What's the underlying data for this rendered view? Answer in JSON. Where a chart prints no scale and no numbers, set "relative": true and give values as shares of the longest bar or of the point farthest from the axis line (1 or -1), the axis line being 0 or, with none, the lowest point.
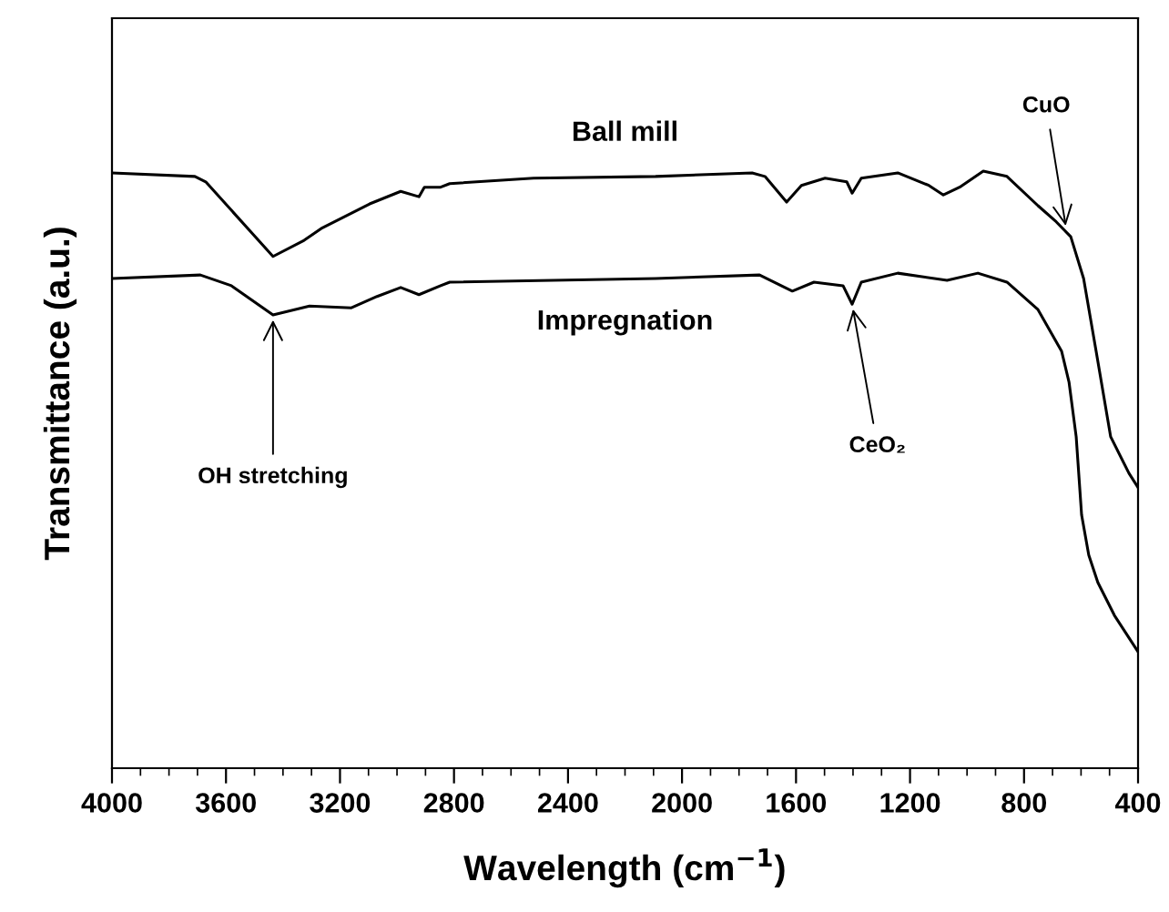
{
  "chart_data": {
    "type": "line",
    "relative": true,
    "xlabel": "Wavelength (cm$^{−1}$)",
    "ylabel": "Transmittance (a.u.)",
    "xlim": [
      4000,
      400
    ],
    "xticks": [
      4000,
      3600,
      3200,
      2800,
      2400,
      2000,
      1600,
      1200,
      800,
      400
    ],
    "grid": false,
    "legend": false,
    "marker": "none",
    "line_style": "solid",
    "series": [
      {
        "name": "Ball mill",
        "color": "#000000",
        "x": [
          4000,
          3709,
          3671,
          3435,
          3326,
          3262,
          3096,
          2987,
          2923,
          2904,
          2847,
          2815,
          2521,
          2093,
          1754,
          1709,
          1633,
          1581,
          1498,
          1422,
          1403,
          1371,
          1243,
          1134,
          1083,
          1026,
          943,
          860,
          751,
          687,
          636,
          591,
          547,
          496,
          432,
          400
        ],
        "values": [
          0.997,
          0.991,
          0.982,
          0.857,
          0.884,
          0.905,
          0.945,
          0.966,
          0.957,
          0.973,
          0.973,
          0.979,
          0.988,
          0.991,
          0.997,
          0.991,
          0.948,
          0.976,
          0.988,
          0.982,
          0.963,
          0.988,
          0.997,
          0.976,
          0.96,
          0.973,
          1.0,
          0.991,
          0.942,
          0.915,
          0.89,
          0.82,
          0.698,
          0.555,
          0.494,
          0.47
        ]
      },
      {
        "name": "Impregnation",
        "color": "#000000",
        "x": [
          4000,
          3690,
          3581,
          3435,
          3307,
          3160,
          3070,
          2987,
          2923,
          2847,
          2815,
          2093,
          1728,
          1613,
          1537,
          1435,
          1403,
          1371,
          1243,
          1070,
          962,
          860,
          751,
          668,
          642,
          617,
          598,
          573,
          541,
          483,
          400
        ],
        "values": [
          0.82,
          0.826,
          0.808,
          0.759,
          0.774,
          0.771,
          0.79,
          0.805,
          0.793,
          0.808,
          0.814,
          0.82,
          0.826,
          0.799,
          0.814,
          0.808,
          0.777,
          0.814,
          0.829,
          0.817,
          0.829,
          0.814,
          0.768,
          0.698,
          0.646,
          0.555,
          0.424,
          0.357,
          0.311,
          0.256,
          0.195
        ]
      }
    ],
    "annotations": [
      {
        "text": "OH stretching",
        "x": 3435,
        "y": 0.759
      },
      {
        "text": "CeO₂",
        "x": 1403,
        "y": 0.777
      },
      {
        "text": "CuO",
        "x": 651,
        "y": 0.9
      }
    ]
  }
}
